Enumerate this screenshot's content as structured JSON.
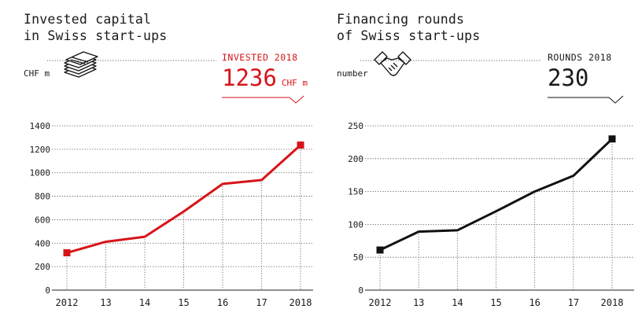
{
  "colors": {
    "accent": "#d7141a",
    "text": "#1a1a1a",
    "grid": "#444444",
    "background": "#ffffff"
  },
  "panels": [
    {
      "title": "Invested capital\nin Swiss start-ups",
      "unit": "CHF m",
      "icon": "banknotes-stack-icon",
      "kicker": "INVESTED 2018",
      "highlight_value": "1236",
      "highlight_unit": "CHF m",
      "color": "#d7141a"
    },
    {
      "title": "Financing rounds\nof Swiss start-ups",
      "unit": "number",
      "icon": "handshake-icon",
      "kicker": "ROUNDS 2018",
      "highlight_value": "230",
      "highlight_unit": "",
      "color": "#111111"
    }
  ],
  "chart_data": [
    {
      "type": "line",
      "title": "Invested capital in Swiss start-ups",
      "ylabel": "CHF m",
      "categories": [
        "2012",
        "13",
        "14",
        "15",
        "16",
        "17",
        "2018"
      ],
      "series": [
        {
          "values": [
            318,
            412,
            455,
            670,
            905,
            938,
            1236
          ]
        }
      ],
      "ylim": [
        0,
        1400
      ],
      "yticks": [
        0,
        200,
        400,
        600,
        800,
        1000,
        1200,
        1400
      ],
      "grid": true,
      "highlight_last_point": true,
      "color": "#d7141a"
    },
    {
      "type": "line",
      "title": "Financing rounds of Swiss start-ups",
      "ylabel": "number",
      "categories": [
        "2012",
        "13",
        "14",
        "15",
        "16",
        "17",
        "2018"
      ],
      "series": [
        {
          "values": [
            61,
            89,
            91,
            120,
            150,
            174,
            230
          ]
        }
      ],
      "ylim": [
        0,
        250
      ],
      "yticks": [
        0,
        50,
        100,
        150,
        200,
        250
      ],
      "grid": true,
      "highlight_last_point": true,
      "color": "#111111"
    }
  ]
}
